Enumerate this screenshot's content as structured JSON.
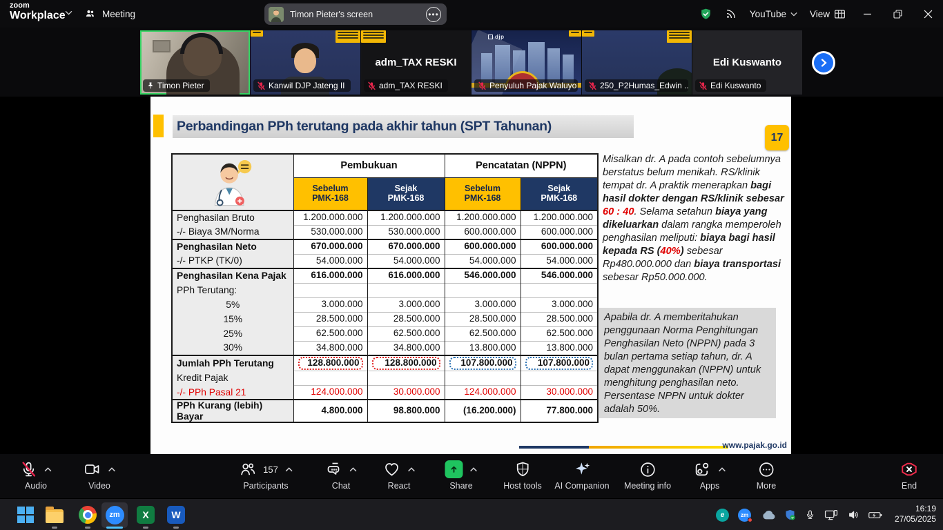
{
  "window": {
    "brand_line1": "zoom",
    "brand_line2": "Workplace",
    "meeting_tab": "Meeting",
    "screen_pill": "Timon Pieter's screen",
    "youtube_label": "YouTube",
    "view_label": "View"
  },
  "video_strip": {
    "thumbnails": [
      {
        "label": "Timon Pieter",
        "scene": "room",
        "active": true,
        "pinned": true,
        "muted": false
      },
      {
        "label": "Kanwil DJP Jateng II",
        "scene": "navy",
        "muted": true,
        "badges": [
          "top-left-small",
          "top-right"
        ]
      },
      {
        "label": "adm_TAX RESKI",
        "scene": "black",
        "center_text": "adm_TAX RESKI",
        "muted": true,
        "badges": [
          "top-left"
        ]
      },
      {
        "label": "Penyuluh Pajak Waluyo",
        "scene": "city",
        "muted": true,
        "badges": [
          "top-right-small"
        ]
      },
      {
        "label": "250_P2Humas_Edwin ...",
        "scene": "hood",
        "muted": true,
        "badges": [
          "top-left-small",
          "top-right"
        ]
      },
      {
        "label": "Edi Kuswanto",
        "scene": "dark",
        "center_text": "Edi Kuswanto",
        "muted": true
      }
    ],
    "next_button_icon": "chevron-right-icon"
  },
  "slide": {
    "title": "Perbandingan PPh terutang pada akhir tahun (SPT Tahunan)",
    "page_number": "17",
    "footer_url": "www.pajak.go.id",
    "table": {
      "corner_icon": "doctor-illustration",
      "group_headers": [
        "Pembukuan",
        "Pencatatan (NPPN)"
      ],
      "col_headers": [
        {
          "line1": "Sebelum",
          "line2": "PMK-168",
          "style": "gold"
        },
        {
          "line1": "Sejak",
          "line2": "PMK-168",
          "style": "navy"
        },
        {
          "line1": "Sebelum",
          "line2": "PMK-168",
          "style": "gold"
        },
        {
          "line1": "Sejak",
          "line2": "PMK-168",
          "style": "navy"
        }
      ],
      "rows": [
        {
          "label": "Penghasilan Bruto",
          "values": [
            "1.200.000.000",
            "1.200.000.000",
            "1.200.000.000",
            "1.200.000.000"
          ]
        },
        {
          "label": "-/- Biaya 3M/Norma",
          "values": [
            "530.000.000",
            "530.000.000",
            "600.000.000",
            "600.000.000"
          ]
        },
        {
          "label": "Penghasilan Neto",
          "bold": true,
          "bold_values": true,
          "section": true,
          "values": [
            "670.000.000",
            "670.000.000",
            "600.000.000",
            "600.000.000"
          ]
        },
        {
          "label": "-/- PTKP (TK/0)",
          "values": [
            "54.000.000",
            "54.000.000",
            "54.000.000",
            "54.000.000"
          ]
        },
        {
          "label": "Penghasilan Kena Pajak",
          "bold": true,
          "bold_values": true,
          "section": true,
          "values": [
            "616.000.000",
            "616.000.000",
            "546.000.000",
            "546.000.000"
          ]
        },
        {
          "label": "PPh Terutang:",
          "values": [
            "",
            "",
            "",
            ""
          ]
        },
        {
          "label": "5%",
          "center": true,
          "values": [
            "3.000.000",
            "3.000.000",
            "3.000.000",
            "3.000.000"
          ]
        },
        {
          "label": "15%",
          "center": true,
          "values": [
            "28.500.000",
            "28.500.000",
            "28.500.000",
            "28.500.000"
          ]
        },
        {
          "label": "25%",
          "center": true,
          "values": [
            "62.500.000",
            "62.500.000",
            "62.500.000",
            "62.500.000"
          ]
        },
        {
          "label": "30%",
          "center": true,
          "values": [
            "34.800.000",
            "34.800.000",
            "13.800.000",
            "13.800.000"
          ]
        },
        {
          "label": "Jumlah PPh Terutang",
          "bold": true,
          "bold_values": true,
          "section": true,
          "values": [
            "128.800.000",
            "128.800.000",
            "107.800.000",
            "107.800.000"
          ],
          "boxes": [
            "red",
            "red",
            "blue",
            "blue"
          ]
        },
        {
          "label": "Kredit Pajak",
          "values": [
            "",
            "",
            "",
            ""
          ]
        },
        {
          "label": "-/- PPh Pasal 21",
          "label_red": true,
          "values_red": true,
          "values": [
            "124.000.000",
            "30.000.000",
            "124.000.000",
            "30.000.000"
          ]
        },
        {
          "label": "PPh Kurang (lebih) Bayar",
          "bold": true,
          "bold_values": true,
          "section": true,
          "values": [
            "4.800.000",
            "98.800.000",
            "(16.200.000)",
            "77.800.000"
          ]
        }
      ]
    },
    "notes_para1": [
      {
        "text": "Misalkan dr. A pada contoh sebelumnya berstatus belum menikah. RS/klinik tempat dr. A praktik menerapkan "
      },
      {
        "text": "bagi hasil dokter dengan RS/klinik sebesar ",
        "bold": true
      },
      {
        "text": "60 : 40",
        "bold": true,
        "red": true
      },
      {
        "text": ". Selama setahun "
      },
      {
        "text": "biaya yang dikeluarkan",
        "bold": true
      },
      {
        "text": " dalam rangka memperoleh penghasilan meliputi: "
      },
      {
        "text": "biaya bagi hasil kepada RS (",
        "bold": true
      },
      {
        "text": "40%",
        "bold": true,
        "red": true
      },
      {
        "text": ")",
        "bold": true
      },
      {
        "text": " sebesar Rp480.000.000 dan "
      },
      {
        "text": "biaya transportasi",
        "bold": true
      },
      {
        "text": " sebesar Rp50.000.000."
      }
    ],
    "notes_para2": [
      {
        "text": "Apabila dr. A "
      },
      {
        "text": "memberitahukan penggunaan Norma Penghitungan Penghasilan Neto (NPPN)",
        "bold": true
      },
      {
        "text": " pada 3 bulan pertama setiap tahun, dr. A dapat menggunakan (NPPN) untuk menghitung penghasilan neto. "
      },
      {
        "text": "Persentase NPPN untuk dokter adalah 50%",
        "bold": true
      },
      {
        "text": "."
      }
    ]
  },
  "toolbar": {
    "items": [
      {
        "id": "audio",
        "label": "Audio",
        "icon": "mic-muted-icon",
        "chevron": true
      },
      {
        "id": "video",
        "label": "Video",
        "icon": "camera-icon",
        "chevron": true
      },
      {
        "id": "participants",
        "label": "Participants",
        "icon": "participants-icon",
        "count": "157",
        "chevron": true
      },
      {
        "id": "chat",
        "label": "Chat",
        "icon": "chat-icon",
        "chevron": true
      },
      {
        "id": "react",
        "label": "React",
        "icon": "heart-icon",
        "chevron": true
      },
      {
        "id": "share",
        "label": "Share",
        "icon": "share-icon",
        "chevron": true
      },
      {
        "id": "host-tools",
        "label": "Host tools",
        "icon": "shield-icon"
      },
      {
        "id": "ai-companion",
        "label": "AI Companion",
        "icon": "sparkle-icon"
      },
      {
        "id": "meeting-info",
        "label": "Meeting info",
        "icon": "info-icon"
      },
      {
        "id": "apps",
        "label": "Apps",
        "icon": "apps-icon",
        "chevron": true
      },
      {
        "id": "more",
        "label": "More",
        "icon": "more-icon"
      },
      {
        "id": "end",
        "label": "End",
        "icon": "end-icon",
        "danger": true
      }
    ]
  },
  "taskbar": {
    "apps": [
      {
        "id": "start",
        "icon": "windows-start-icon",
        "running": false
      },
      {
        "id": "explorer",
        "icon": "folder-icon",
        "running": true
      },
      {
        "id": "chrome",
        "icon": "chrome-icon",
        "running": true
      },
      {
        "id": "zoom",
        "icon": "zoom-app-icon",
        "running": true,
        "active": true
      },
      {
        "id": "excel",
        "icon": "excel-icon",
        "letter": "X",
        "running": true
      },
      {
        "id": "word",
        "icon": "word-icon",
        "letter": "W",
        "running": true
      }
    ],
    "tray_icons": [
      "eset-icon",
      "zoom-tray-icon",
      "onedrive-icon",
      "security-shield-icon",
      "microphone-icon",
      "display-icon",
      "speaker-icon",
      "battery-icon"
    ],
    "clock": {
      "time": "16:19",
      "date": "27/05/2025"
    }
  },
  "colors": {
    "gold": "#FFC000",
    "navy": "#1F3864",
    "red_text": "#E00000",
    "box_red": "#E02020",
    "box_blue": "#2E74B5",
    "active_green": "#35D463",
    "share_green": "#1FC45F",
    "end_red": "#F02B4B",
    "zoom_blue": "#2D8CFF"
  }
}
